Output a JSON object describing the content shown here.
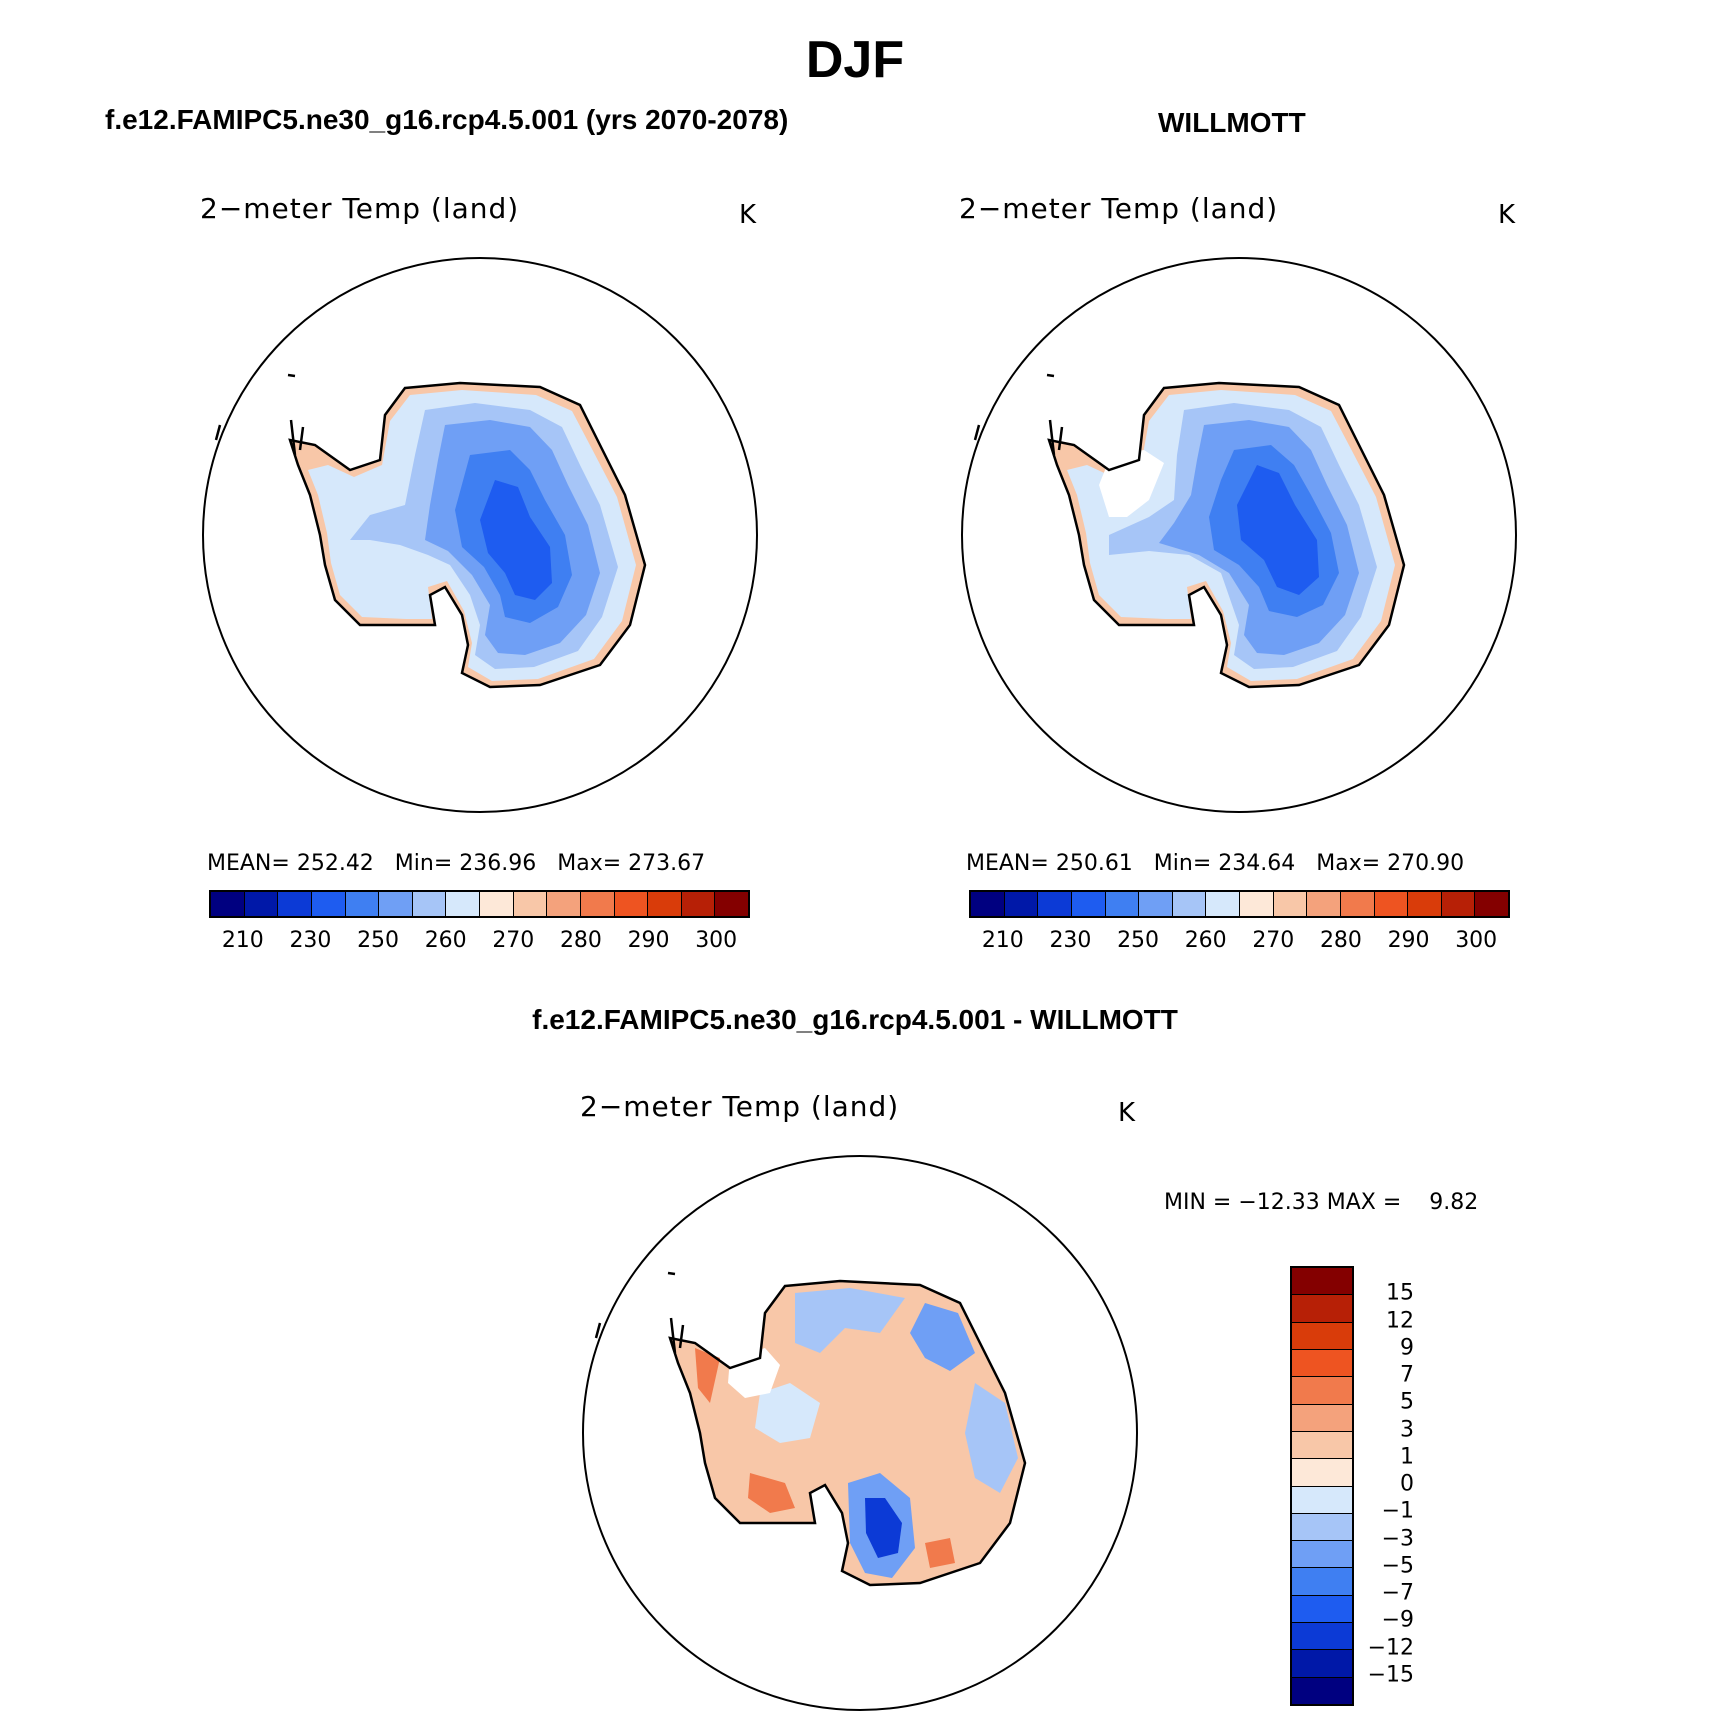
{
  "title": "DJF",
  "panels": [
    {
      "title": "f.e12.FAMIPC5.ne30_g16.rcp4.5.001 (yrs 2070-2078)",
      "variable": "2−meter Temp (land)",
      "units": "K",
      "stats": {
        "mean_label": "MEAN=",
        "mean": "252.42",
        "min_label": "Min=",
        "min": "236.96",
        "max_label": "Max=",
        "max": "273.67"
      }
    },
    {
      "title": "WILLMOTT",
      "variable": "2−meter Temp (land)",
      "units": "K",
      "stats": {
        "mean_label": "MEAN=",
        "mean": "250.61",
        "min_label": "Min=",
        "min": "234.64",
        "max_label": "Max=",
        "max": "270.90"
      }
    }
  ],
  "abs_colorbar": {
    "colors": [
      "#000080",
      "#0018a8",
      "#0c3ad6",
      "#1e5cf0",
      "#3f7ff2",
      "#6f9ff5",
      "#a6c5f7",
      "#d6e8fb",
      "#fde8d8",
      "#f8c7a8",
      "#f4a27c",
      "#f17a4c",
      "#ee5421",
      "#d93c0a",
      "#b72006",
      "#840000"
    ],
    "labels": [
      "210",
      "230",
      "250",
      "260",
      "270",
      "280",
      "290",
      "300"
    ]
  },
  "diff_panel": {
    "title": "f.e12.FAMIPC5.ne30_g16.rcp4.5.001 - WILLMOTT",
    "variable": "2−meter Temp (land)",
    "units": "K",
    "minmax": "MIN = −12.33 MAX =    9.82"
  },
  "diff_colorbar": {
    "colors_top_to_bottom": [
      "#840000",
      "#b72006",
      "#d93c0a",
      "#ee5421",
      "#f17a4c",
      "#f4a27c",
      "#f8c7a8",
      "#fde8d8",
      "#d6e8fb",
      "#a6c5f7",
      "#6f9ff5",
      "#3f7ff2",
      "#1e5cf0",
      "#0c3ad6",
      "#0018a8",
      "#000080"
    ],
    "labels": [
      "15",
      "12",
      "9",
      "7",
      "5",
      "3",
      "1",
      "0",
      "−1",
      "−3",
      "−5",
      "−7",
      "−9",
      "−12",
      "−15"
    ]
  },
  "map_fills": {
    "panel1": {
      "coast": "#d6e8fb",
      "mid": "#a6c5f7",
      "inner": "#6f9ff5",
      "core": "#3f7ff2",
      "deep": "#1e5cf0",
      "rim": "#f8c7a8"
    },
    "panel2": {
      "coast": "#d6e8fb",
      "mid": "#a6c5f7",
      "inner": "#6f9ff5",
      "core": "#3f7ff2",
      "deep": "#1e5cf0",
      "rim": "#f8c7a8"
    },
    "diff": {
      "base": "#f8c7a8",
      "blue1": "#d6e8fb",
      "blue2": "#a6c5f7",
      "blue3": "#6f9ff5",
      "deep": "#0c3ad6",
      "red": "#f17a4c"
    }
  }
}
